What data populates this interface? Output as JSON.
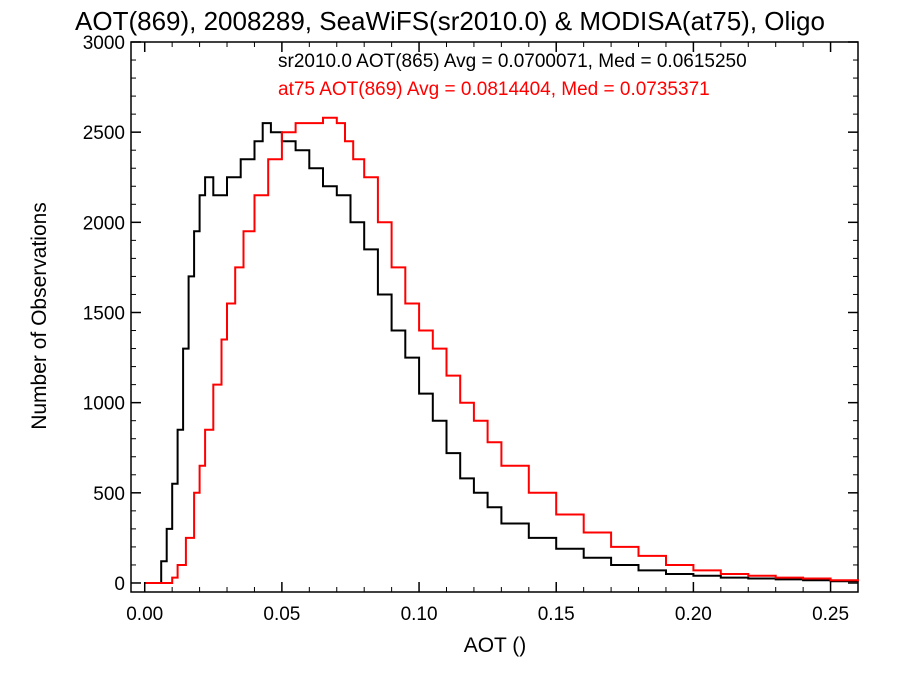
{
  "chart_data": {
    "type": "line",
    "title": "AOT(869), 2008289, SeaWiFS(sr2010.0) & MODISA(at75), Oligo",
    "xlabel": "AOT ()",
    "ylabel": "Number of Observations",
    "xlim": [
      -0.005,
      0.26
    ],
    "ylim": [
      -50,
      3000
    ],
    "x_ticks": [
      0.0,
      0.05,
      0.1,
      0.15,
      0.2,
      0.25
    ],
    "x_tick_labels": [
      "0.00",
      "0.05",
      "0.10",
      "0.15",
      "0.20",
      "0.25"
    ],
    "y_ticks": [
      0,
      500,
      1000,
      1500,
      2000,
      2500,
      3000
    ],
    "y_tick_labels": [
      "0",
      "500",
      "1000",
      "1500",
      "2000",
      "2500",
      "3000"
    ],
    "grid": false,
    "annotations": [
      {
        "text": "sr2010.0 AOT(865) Avg = 0.0700071, Med = 0.0615250",
        "color": "#000000"
      },
      {
        "text": "at75 AOT(869) Avg = 0.0814404, Med = 0.0735371",
        "color": "#ff0000"
      }
    ],
    "series": [
      {
        "color": "#000000",
        "x": [
          0.0,
          0.004,
          0.006,
          0.008,
          0.01,
          0.012,
          0.014,
          0.016,
          0.018,
          0.02,
          0.022,
          0.025,
          0.03,
          0.035,
          0.04,
          0.043,
          0.046,
          0.05,
          0.055,
          0.06,
          0.065,
          0.07,
          0.075,
          0.08,
          0.085,
          0.09,
          0.095,
          0.1,
          0.105,
          0.11,
          0.115,
          0.12,
          0.125,
          0.13,
          0.14,
          0.15,
          0.16,
          0.17,
          0.18,
          0.19,
          0.2,
          0.21,
          0.22,
          0.23,
          0.24,
          0.25,
          0.26
        ],
        "y": [
          0,
          0,
          120,
          300,
          550,
          850,
          1300,
          1700,
          1950,
          2150,
          2250,
          2150,
          2250,
          2350,
          2450,
          2550,
          2500,
          2450,
          2400,
          2300,
          2200,
          2150,
          2000,
          1850,
          1600,
          1400,
          1250,
          1050,
          900,
          720,
          580,
          500,
          420,
          330,
          250,
          190,
          140,
          100,
          70,
          50,
          40,
          30,
          25,
          20,
          15,
          10,
          8
        ]
      },
      {
        "color": "#ff0000",
        "x": [
          0.0,
          0.008,
          0.01,
          0.012,
          0.015,
          0.018,
          0.02,
          0.022,
          0.025,
          0.028,
          0.03,
          0.033,
          0.036,
          0.04,
          0.045,
          0.05,
          0.055,
          0.06,
          0.065,
          0.07,
          0.073,
          0.076,
          0.08,
          0.085,
          0.09,
          0.095,
          0.1,
          0.105,
          0.11,
          0.115,
          0.12,
          0.125,
          0.13,
          0.14,
          0.15,
          0.16,
          0.17,
          0.18,
          0.19,
          0.2,
          0.21,
          0.22,
          0.23,
          0.24,
          0.25,
          0.26
        ],
        "y": [
          0,
          0,
          30,
          100,
          250,
          500,
          650,
          850,
          1100,
          1350,
          1550,
          1750,
          1950,
          2150,
          2350,
          2500,
          2550,
          2550,
          2580,
          2550,
          2450,
          2350,
          2250,
          2000,
          1750,
          1550,
          1400,
          1300,
          1150,
          1000,
          900,
          780,
          650,
          500,
          380,
          280,
          200,
          150,
          100,
          70,
          50,
          40,
          30,
          25,
          15,
          10
        ]
      }
    ]
  }
}
